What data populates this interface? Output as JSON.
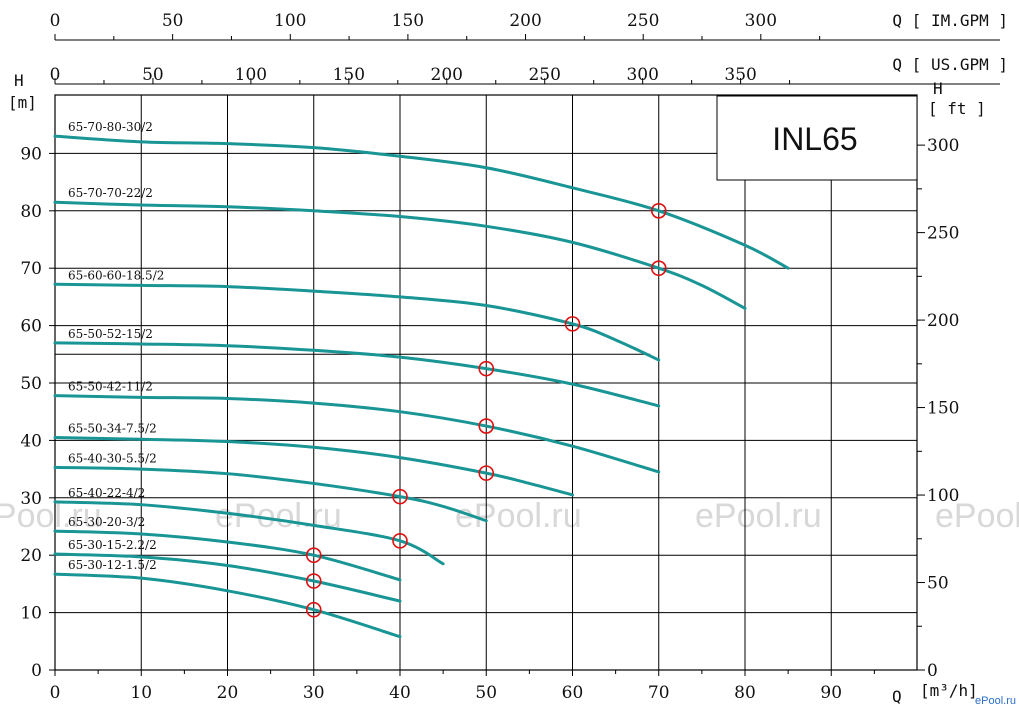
{
  "model_title": "INL65",
  "watermark": "ePool.ru",
  "corner_mark": "ePool.ru",
  "chart_data": {
    "type": "line",
    "title": "",
    "xlabel": "Q [m³/h]",
    "ylabel": "H [m]",
    "ylabel_right": "H [ ft ]",
    "x_label_text": "Q",
    "x_unit_text": "[m³/h]",
    "y_label_text": "H",
    "y_unit_text": "[m]",
    "right_label_text": "H",
    "right_unit_text": "[ ft ]",
    "xlim": [
      0,
      100
    ],
    "ylim": [
      0,
      100
    ],
    "x_ticks": [
      0,
      10,
      20,
      30,
      40,
      50,
      60,
      70,
      80,
      90
    ],
    "y_ticks": [
      0,
      10,
      20,
      30,
      40,
      50,
      60,
      70,
      80,
      90
    ],
    "right_ticks": [
      0,
      50,
      100,
      150,
      200,
      250,
      300
    ],
    "top_axes": [
      {
        "label": "Q [ IM.GPM ]",
        "ticks": [
          0,
          50,
          100,
          150,
          200,
          250,
          300
        ],
        "unit_per_m3h": 3.666
      },
      {
        "label": "Q [ US.GPM ]",
        "ticks": [
          0,
          50,
          100,
          150,
          200,
          250,
          300,
          350
        ],
        "unit_per_m3h": 4.403
      }
    ],
    "reference_line": {
      "y": 55,
      "x_end": 69
    },
    "grid": true,
    "series": [
      {
        "name": "65-70-80-30/2",
        "points": [
          [
            0,
            93
          ],
          [
            10,
            92
          ],
          [
            20,
            91.7
          ],
          [
            30,
            91
          ],
          [
            40,
            89.5
          ],
          [
            50,
            87.5
          ],
          [
            60,
            84
          ],
          [
            70,
            80
          ],
          [
            80,
            74
          ],
          [
            85,
            70
          ]
        ],
        "duty": [
          70,
          80
        ]
      },
      {
        "name": "65-70-70-22/2",
        "points": [
          [
            0,
            81.5
          ],
          [
            10,
            81
          ],
          [
            20,
            80.7
          ],
          [
            30,
            80
          ],
          [
            40,
            79
          ],
          [
            50,
            77.3
          ],
          [
            60,
            74.5
          ],
          [
            70,
            70
          ],
          [
            75,
            67
          ],
          [
            80,
            63
          ]
        ],
        "duty": [
          70,
          70
        ]
      },
      {
        "name": "65-60-60-18.5/2",
        "points": [
          [
            0,
            67.2
          ],
          [
            10,
            67
          ],
          [
            20,
            66.8
          ],
          [
            30,
            66
          ],
          [
            40,
            65
          ],
          [
            50,
            63.5
          ],
          [
            60,
            60.3
          ],
          [
            65,
            57.5
          ],
          [
            70,
            54
          ]
        ],
        "duty": [
          60,
          60.3
        ]
      },
      {
        "name": "65-50-52-15/2",
        "points": [
          [
            0,
            57
          ],
          [
            10,
            56.8
          ],
          [
            20,
            56.5
          ],
          [
            30,
            55.7
          ],
          [
            40,
            54.5
          ],
          [
            50,
            52.5
          ],
          [
            60,
            49.8
          ],
          [
            70,
            46
          ]
        ],
        "duty": [
          50,
          52.5
        ]
      },
      {
        "name": "65-50-42-11/2",
        "points": [
          [
            0,
            47.8
          ],
          [
            10,
            47.5
          ],
          [
            20,
            47.3
          ],
          [
            30,
            46.5
          ],
          [
            40,
            45
          ],
          [
            50,
            42.5
          ],
          [
            60,
            39
          ],
          [
            70,
            34.5
          ]
        ],
        "duty": [
          50,
          42.5
        ]
      },
      {
        "name": "65-50-34-7.5/2",
        "points": [
          [
            0,
            40.5
          ],
          [
            10,
            40.2
          ],
          [
            20,
            39.8
          ],
          [
            30,
            38.8
          ],
          [
            40,
            37
          ],
          [
            50,
            34.3
          ],
          [
            55,
            32.5
          ],
          [
            60,
            30.5
          ]
        ],
        "duty": [
          50,
          34.3
        ]
      },
      {
        "name": "65-40-30-5.5/2",
        "points": [
          [
            0,
            35.3
          ],
          [
            10,
            35
          ],
          [
            20,
            34.2
          ],
          [
            30,
            32.5
          ],
          [
            40,
            30.2
          ],
          [
            45,
            28.5
          ],
          [
            50,
            26
          ]
        ],
        "duty": [
          40,
          30.2
        ]
      },
      {
        "name": "65-40-22-4/2",
        "points": [
          [
            0,
            29.3
          ],
          [
            10,
            28.8
          ],
          [
            20,
            27.3
          ],
          [
            30,
            25.2
          ],
          [
            40,
            22.5
          ],
          [
            45,
            18.5
          ]
        ],
        "duty": [
          40,
          22.5
        ]
      },
      {
        "name": "65-30-20-3/2",
        "points": [
          [
            0,
            24.2
          ],
          [
            10,
            23.7
          ],
          [
            20,
            22.3
          ],
          [
            30,
            20
          ],
          [
            40,
            15.7
          ]
        ],
        "duty": [
          30,
          20
        ]
      },
      {
        "name": "65-30-15-2.2/2",
        "points": [
          [
            0,
            20.2
          ],
          [
            10,
            19.7
          ],
          [
            20,
            18.2
          ],
          [
            30,
            15.5
          ],
          [
            40,
            12
          ]
        ],
        "duty": [
          30,
          15.5
        ]
      },
      {
        "name": "65-30-12-1.5/2",
        "points": [
          [
            0,
            16.7
          ],
          [
            10,
            16
          ],
          [
            20,
            13.8
          ],
          [
            30,
            10.5
          ],
          [
            40,
            5.8
          ]
        ],
        "duty": [
          30,
          10.5
        ]
      }
    ]
  }
}
